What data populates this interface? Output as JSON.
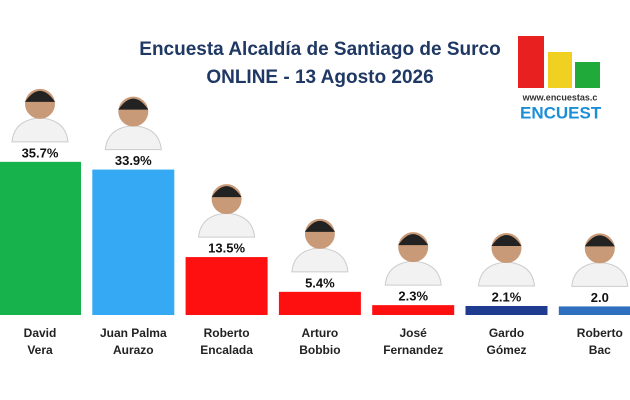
{
  "chart_data": {
    "type": "bar",
    "title": "Encuesta Alcaldía de Santiago de Surco",
    "subtitle": "ONLINE - 13 Agosto 2026",
    "categories": [
      "David Vera",
      "Juan Palma Aurazo",
      "Roberto Encalada",
      "Arturo Bobbio",
      "José Fernandez",
      "Gardo Gómez",
      "Roberto Bac"
    ],
    "values": [
      35.7,
      33.9,
      13.5,
      5.4,
      2.3,
      2.1,
      2.0
    ],
    "value_labels": [
      "35.7%",
      "33.9%",
      "13.5%",
      "5.4%",
      "2.3%",
      "2.1%",
      "2.0"
    ],
    "colors": [
      "#17b24b",
      "#36a9f5",
      "#ff1010",
      "#ff1010",
      "#ff1010",
      "#1f3b8f",
      "#2f6fc0"
    ]
  },
  "logo": {
    "url": "www.encuestas.c",
    "text": "ENCUEST"
  }
}
